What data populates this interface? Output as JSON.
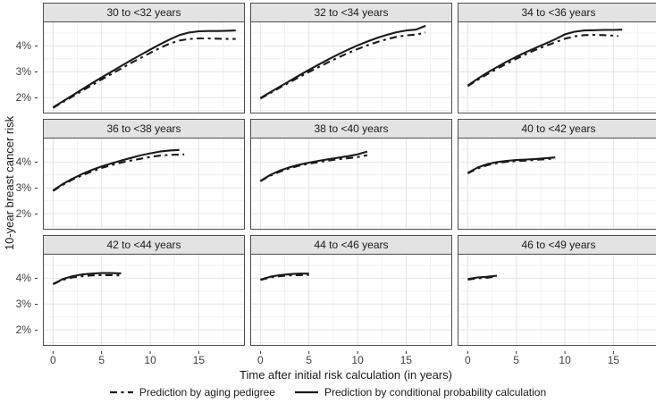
{
  "colors": {
    "line": "#1a1a1a",
    "strip_bg": "#e3e3e3",
    "strip_border": "#4d4d4d",
    "panel_border": "#4d4d4d",
    "panel_bg": "#ffffff",
    "grid_major": "#e4e4e4",
    "grid_minor": "#f1f1f1",
    "tick_mark": "#333333",
    "tick_label": "#404040",
    "text": "#1a1a1a"
  },
  "chart_data": {
    "type": "line",
    "xlabel": "Time after initial risk calculation (in years)",
    "ylabel": "10-year breast cancer risk",
    "xlim": [
      -1.05,
      19.75
    ],
    "ylim": [
      1.38,
      4.95
    ],
    "x_ticks": [
      0,
      5,
      10,
      15
    ],
    "x_tick_labels": [
      "0",
      "5",
      "10",
      "15"
    ],
    "x_minor_ticks": [
      2.5,
      7.5,
      12.5,
      17.5
    ],
    "y_ticks": [
      2,
      3,
      4
    ],
    "y_tick_labels": [
      "2%",
      "3%",
      "4%"
    ],
    "y_minor_ticks": [
      1.5,
      2.5,
      3.5,
      4.5
    ],
    "grid": true,
    "legend": {
      "position": "bottom",
      "items": [
        {
          "label": "Prediction by aging pedigree",
          "line_style": "dashdot"
        },
        {
          "label": "Prediction by conditional probability calculation",
          "line_style": "solid"
        }
      ]
    },
    "facets": [
      {
        "title": "30 to <32 years",
        "aging_pedigree": [
          [
            0,
            1.6
          ],
          [
            1,
            1.82
          ],
          [
            2,
            2.04
          ],
          [
            3,
            2.26
          ],
          [
            4,
            2.48
          ],
          [
            5,
            2.7
          ],
          [
            6,
            2.91
          ],
          [
            7,
            3.12
          ],
          [
            8,
            3.33
          ],
          [
            9,
            3.53
          ],
          [
            10,
            3.73
          ],
          [
            11,
            3.92
          ],
          [
            12,
            4.09
          ],
          [
            13,
            4.21
          ],
          [
            14,
            4.27
          ],
          [
            15,
            4.29
          ],
          [
            16,
            4.29
          ],
          [
            17,
            4.28
          ],
          [
            18,
            4.27
          ],
          [
            18.8,
            4.27
          ]
        ],
        "conditional_probability": [
          [
            0,
            1.62
          ],
          [
            1,
            1.85
          ],
          [
            2,
            2.08
          ],
          [
            3,
            2.32
          ],
          [
            4,
            2.55
          ],
          [
            5,
            2.78
          ],
          [
            6,
            3.0
          ],
          [
            7,
            3.22
          ],
          [
            8,
            3.44
          ],
          [
            9,
            3.65
          ],
          [
            10,
            3.86
          ],
          [
            11,
            4.06
          ],
          [
            12,
            4.25
          ],
          [
            13,
            4.42
          ],
          [
            14,
            4.52
          ],
          [
            15,
            4.57
          ],
          [
            16,
            4.58
          ],
          [
            17,
            4.58
          ],
          [
            18,
            4.59
          ],
          [
            18.8,
            4.6
          ]
        ]
      },
      {
        "title": "32 to <34 years",
        "aging_pedigree": [
          [
            0,
            1.96
          ],
          [
            1,
            2.17
          ],
          [
            2,
            2.38
          ],
          [
            3,
            2.59
          ],
          [
            4,
            2.79
          ],
          [
            5,
            2.99
          ],
          [
            6,
            3.18
          ],
          [
            7,
            3.37
          ],
          [
            8,
            3.55
          ],
          [
            9,
            3.72
          ],
          [
            10,
            3.88
          ],
          [
            11,
            4.02
          ],
          [
            12,
            4.15
          ],
          [
            13,
            4.26
          ],
          [
            14,
            4.35
          ],
          [
            15,
            4.41
          ],
          [
            16,
            4.44
          ],
          [
            17,
            4.52
          ]
        ],
        "conditional_probability": [
          [
            0,
            1.98
          ],
          [
            1,
            2.2
          ],
          [
            2,
            2.42
          ],
          [
            3,
            2.64
          ],
          [
            4,
            2.86
          ],
          [
            5,
            3.07
          ],
          [
            6,
            3.28
          ],
          [
            7,
            3.48
          ],
          [
            8,
            3.67
          ],
          [
            9,
            3.85
          ],
          [
            10,
            4.02
          ],
          [
            11,
            4.17
          ],
          [
            12,
            4.31
          ],
          [
            13,
            4.43
          ],
          [
            14,
            4.53
          ],
          [
            15,
            4.6
          ],
          [
            16,
            4.63
          ],
          [
            17,
            4.78
          ]
        ]
      },
      {
        "title": "34 to <36 years",
        "aging_pedigree": [
          [
            0,
            2.44
          ],
          [
            1,
            2.68
          ],
          [
            2,
            2.9
          ],
          [
            3,
            3.11
          ],
          [
            4,
            3.31
          ],
          [
            5,
            3.5
          ],
          [
            6,
            3.68
          ],
          [
            7,
            3.85
          ],
          [
            8,
            4.0
          ],
          [
            9,
            4.14
          ],
          [
            10,
            4.28
          ],
          [
            11,
            4.37
          ],
          [
            12,
            4.42
          ],
          [
            13,
            4.43
          ],
          [
            14,
            4.42
          ],
          [
            15,
            4.4
          ],
          [
            15.5,
            4.38
          ]
        ],
        "conditional_probability": [
          [
            0,
            2.46
          ],
          [
            1,
            2.72
          ],
          [
            2,
            2.96
          ],
          [
            3,
            3.18
          ],
          [
            4,
            3.39
          ],
          [
            5,
            3.58
          ],
          [
            6,
            3.76
          ],
          [
            7,
            3.93
          ],
          [
            8,
            4.09
          ],
          [
            9,
            4.26
          ],
          [
            10,
            4.45
          ],
          [
            11,
            4.55
          ],
          [
            12,
            4.6
          ],
          [
            13,
            4.61
          ],
          [
            14,
            4.62
          ],
          [
            15,
            4.62
          ],
          [
            15.9,
            4.63
          ]
        ]
      },
      {
        "title": "36 to <38 years",
        "aging_pedigree": [
          [
            0,
            2.88
          ],
          [
            1,
            3.12
          ],
          [
            2,
            3.32
          ],
          [
            3,
            3.49
          ],
          [
            4,
            3.64
          ],
          [
            5,
            3.77
          ],
          [
            6,
            3.88
          ],
          [
            7,
            3.98
          ],
          [
            8,
            4.06
          ],
          [
            9,
            4.13
          ],
          [
            10,
            4.2
          ],
          [
            11,
            4.25
          ],
          [
            12,
            4.28
          ],
          [
            13,
            4.29
          ],
          [
            13.5,
            4.3
          ]
        ],
        "conditional_probability": [
          [
            0,
            2.9
          ],
          [
            1,
            3.15
          ],
          [
            2,
            3.36
          ],
          [
            3,
            3.54
          ],
          [
            4,
            3.7
          ],
          [
            5,
            3.83
          ],
          [
            6,
            3.95
          ],
          [
            7,
            4.06
          ],
          [
            8,
            4.16
          ],
          [
            9,
            4.26
          ],
          [
            10,
            4.34
          ],
          [
            11,
            4.41
          ],
          [
            12,
            4.45
          ],
          [
            13,
            4.47
          ]
        ]
      },
      {
        "title": "38 to <40 years",
        "aging_pedigree": [
          [
            0,
            3.26
          ],
          [
            1,
            3.47
          ],
          [
            2,
            3.63
          ],
          [
            3,
            3.76
          ],
          [
            4,
            3.86
          ],
          [
            5,
            3.94
          ],
          [
            6,
            4.0
          ],
          [
            7,
            4.06
          ],
          [
            8,
            4.11
          ],
          [
            9,
            4.15
          ],
          [
            10,
            4.19
          ],
          [
            11,
            4.27
          ]
        ],
        "conditional_probability": [
          [
            0,
            3.27
          ],
          [
            1,
            3.5
          ],
          [
            2,
            3.67
          ],
          [
            3,
            3.8
          ],
          [
            4,
            3.9
          ],
          [
            5,
            3.98
          ],
          [
            6,
            4.05
          ],
          [
            7,
            4.11
          ],
          [
            8,
            4.17
          ],
          [
            9,
            4.23
          ],
          [
            10,
            4.3
          ],
          [
            11,
            4.41
          ]
        ]
      },
      {
        "title": "40 to <42 years",
        "aging_pedigree": [
          [
            0,
            3.56
          ],
          [
            1,
            3.75
          ],
          [
            2,
            3.88
          ],
          [
            3,
            3.96
          ],
          [
            4,
            4.01
          ],
          [
            5,
            4.04
          ],
          [
            6,
            4.06
          ],
          [
            7,
            4.09
          ],
          [
            8,
            4.11
          ],
          [
            9,
            4.14
          ]
        ],
        "conditional_probability": [
          [
            0,
            3.58
          ],
          [
            1,
            3.79
          ],
          [
            2,
            3.92
          ],
          [
            3,
            4.0
          ],
          [
            4,
            4.05
          ],
          [
            5,
            4.08
          ],
          [
            6,
            4.1
          ],
          [
            7,
            4.12
          ],
          [
            8,
            4.15
          ],
          [
            9,
            4.18
          ]
        ]
      },
      {
        "title": "42 to <44 years",
        "aging_pedigree": [
          [
            0,
            3.77
          ],
          [
            1,
            3.94
          ],
          [
            2,
            4.03
          ],
          [
            3,
            4.08
          ],
          [
            4,
            4.11
          ],
          [
            5,
            4.12
          ],
          [
            6,
            4.12
          ],
          [
            7,
            4.11
          ]
        ],
        "conditional_probability": [
          [
            0,
            3.78
          ],
          [
            1,
            3.97
          ],
          [
            2,
            4.08
          ],
          [
            3,
            4.15
          ],
          [
            4,
            4.18
          ],
          [
            5,
            4.2
          ],
          [
            6,
            4.2
          ],
          [
            7,
            4.19
          ]
        ]
      },
      {
        "title": "44 to <46 years",
        "aging_pedigree": [
          [
            0,
            3.93
          ],
          [
            1,
            4.03
          ],
          [
            2,
            4.08
          ],
          [
            3,
            4.11
          ],
          [
            4,
            4.12
          ],
          [
            5,
            4.13
          ]
        ],
        "conditional_probability": [
          [
            0,
            3.95
          ],
          [
            1,
            4.06
          ],
          [
            2,
            4.12
          ],
          [
            3,
            4.16
          ],
          [
            4,
            4.18
          ],
          [
            5,
            4.18
          ]
        ]
      },
      {
        "title": "46 to <49 years",
        "aging_pedigree": [
          [
            0,
            3.95
          ],
          [
            1,
            4.0
          ],
          [
            2,
            4.02
          ],
          [
            3,
            4.07
          ]
        ],
        "conditional_probability": [
          [
            0,
            3.97
          ],
          [
            1,
            4.03
          ],
          [
            2,
            4.06
          ],
          [
            3,
            4.1
          ]
        ]
      }
    ]
  }
}
